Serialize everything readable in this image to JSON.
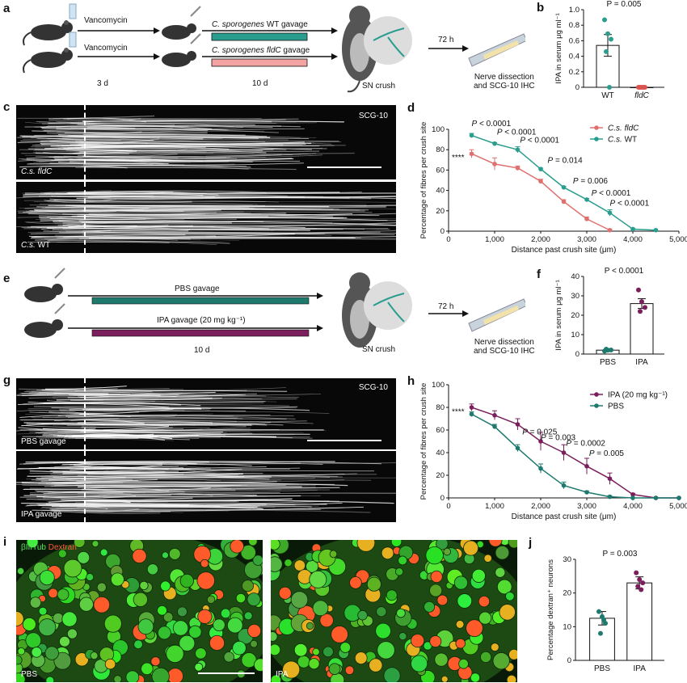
{
  "panels": {
    "a": {
      "letter": "a",
      "vanco": "Vancomycin",
      "days1": "3 d",
      "wt_gavage_species": "C. sporogenes",
      "wt_gavage_rest": "WT gavage",
      "fldc_gavage_species": "C. sporogenes",
      "fldc_gavage_gene": "fldC",
      "fldc_gavage_rest": "gavage",
      "days2": "10 d",
      "sn_crush": "SN crush",
      "hours": "72 h",
      "outcome_line1": "Nerve dissection",
      "outcome_line2": "and SCG-10 IHC",
      "bar_colors": {
        "wt": "#2a9d8f",
        "fldc": "#f4a3a3"
      }
    },
    "c": {
      "letter": "c",
      "stain": "SCG-10",
      "top_species": "C.s.",
      "top_gene": "fldC",
      "bottom_species": "C.s.",
      "bottom_gene": "WT"
    },
    "e": {
      "letter": "e",
      "pbs": "PBS gavage",
      "ipa": "IPA gavage (20 mg kg⁻¹)",
      "days": "10 d",
      "sn_crush": "SN crush",
      "hours": "72 h",
      "outcome_line1": "Nerve dissection",
      "outcome_line2": "and SCG-10 IHC",
      "bar_colors": {
        "pbs": "#1f7a6e",
        "ipa": "#7a1f5c"
      }
    },
    "g": {
      "letter": "g",
      "stain": "SCG-10",
      "top": "PBS gavage",
      "bottom": "IPA gavage"
    },
    "i": {
      "letter": "i",
      "stain1": "βIIITub",
      "stain2": "Dextran",
      "left": "PBS",
      "right": "IPA"
    }
  },
  "chart_data": [
    {
      "id": "b",
      "letter": "b",
      "type": "bar",
      "ylabel": "IPA in serum μg ml⁻¹",
      "ylim": [
        0,
        1.0
      ],
      "yticks": [
        "0",
        "0.2",
        "0.4",
        "0.6",
        "0.8",
        "1.0"
      ],
      "ytick_values": [
        0,
        0.2,
        0.4,
        0.6,
        0.8,
        1.0
      ],
      "categories": [
        "WT",
        "fldC"
      ],
      "values": [
        0.54,
        0.0
      ],
      "errors": [
        0.14,
        0.0
      ],
      "points": [
        [
          0.87,
          0.69,
          0.62,
          0.46,
          0.0
        ],
        [
          0.0,
          0.0,
          0.0,
          0.0,
          0.0
        ]
      ],
      "point_colors": [
        "#2a9d8f",
        "#d9534f"
      ],
      "pvalue": "P = 0.005"
    },
    {
      "id": "d",
      "letter": "d",
      "type": "line",
      "xlabel": "Distance past crush site (μm)",
      "ylabel": "Percentage of fibres per crush site",
      "xlim": [
        0,
        5000
      ],
      "ylim": [
        0,
        100
      ],
      "xticks": [
        "0",
        "1,000",
        "2,000",
        "3,000",
        "4,000",
        "5,000"
      ],
      "xtick_values": [
        0,
        1000,
        2000,
        3000,
        4000,
        5000
      ],
      "yticks": [
        "0",
        "20",
        "40",
        "60",
        "80",
        "100"
      ],
      "ytick_values": [
        0,
        20,
        40,
        60,
        80,
        100
      ],
      "x": [
        500,
        1000,
        1500,
        2000,
        2500,
        3000,
        3500,
        4000,
        4500
      ],
      "series": [
        {
          "name_species": "C.s.",
          "name_gene": "fldC",
          "color": "#e07070",
          "values": [
            76,
            66,
            62,
            49,
            29,
            12,
            1,
            null,
            null
          ],
          "errors": [
            4,
            6,
            2,
            2,
            2,
            2,
            1,
            null,
            null
          ]
        },
        {
          "name_species": "C.s.",
          "name_gene": "WT",
          "color": "#2a9d8f",
          "values": [
            94,
            86,
            80,
            61,
            43,
            31,
            18,
            2,
            1
          ],
          "errors": [
            2,
            1,
            3,
            1,
            1,
            1,
            3,
            1,
            0
          ]
        }
      ],
      "sig": "****",
      "annotations": [
        {
          "text": "P < 0.0001",
          "x": 500,
          "y": 103
        },
        {
          "text": "P < 0.0001",
          "x": 1050,
          "y": 95
        },
        {
          "text": "P < 0.0001",
          "x": 1550,
          "y": 87
        },
        {
          "text": "P = 0.014",
          "x": 2150,
          "y": 67
        },
        {
          "text": "P = 0.006",
          "x": 2700,
          "y": 47
        },
        {
          "text": "P < 0.0001",
          "x": 3100,
          "y": 35
        },
        {
          "text": "P < 0.0001",
          "x": 3500,
          "y": 25
        }
      ]
    },
    {
      "id": "f",
      "letter": "f",
      "type": "bar",
      "ylabel": "IPA in serum μg ml⁻¹",
      "ylim": [
        0,
        40
      ],
      "yticks": [
        "0",
        "10",
        "20",
        "30",
        "40"
      ],
      "ytick_values": [
        0,
        10,
        20,
        30,
        40
      ],
      "categories": [
        "PBS",
        "IPA"
      ],
      "values": [
        2,
        26
      ],
      "errors": [
        0.4,
        2.5
      ],
      "points": [
        [
          1.5,
          2.0,
          2.1,
          2.5
        ],
        [
          33,
          27,
          24,
          22
        ]
      ],
      "point_colors": [
        "#1f7a6e",
        "#7a1f5c"
      ],
      "pvalue": "P < 0.0001"
    },
    {
      "id": "h",
      "letter": "h",
      "type": "line",
      "xlabel": "Distance past crush site (μm)",
      "ylabel": "Percentage of fibres per crush site",
      "xlim": [
        0,
        5000
      ],
      "ylim": [
        0,
        100
      ],
      "xticks": [
        "0",
        "1,000",
        "2,000",
        "3,000",
        "4,000",
        "5,000"
      ],
      "xtick_values": [
        0,
        1000,
        2000,
        3000,
        4000,
        5000
      ],
      "yticks": [
        "0",
        "20",
        "40",
        "60",
        "80",
        "100"
      ],
      "ytick_values": [
        0,
        20,
        40,
        60,
        80,
        100
      ],
      "x": [
        500,
        1000,
        1500,
        2000,
        2500,
        3000,
        3500,
        4000,
        4500,
        5000
      ],
      "series": [
        {
          "name": "IPA (20 mg kg⁻¹)",
          "color": "#7a1f5c",
          "values": [
            80,
            73,
            65,
            50,
            40,
            28,
            17,
            3,
            0,
            0
          ],
          "errors": [
            3,
            4,
            5,
            8,
            7,
            7,
            5,
            1,
            0,
            0
          ]
        },
        {
          "name": "PBS",
          "color": "#1f7a6e",
          "values": [
            74,
            63,
            44,
            26,
            11,
            5,
            1,
            0,
            0,
            0
          ],
          "errors": [
            2,
            2,
            3,
            4,
            3,
            1,
            1,
            0,
            0,
            0
          ]
        }
      ],
      "sig": "****",
      "annotations": [
        {
          "text": "P = 0.025",
          "x": 1600,
          "y": 56
        },
        {
          "text": "P = 0.003",
          "x": 2000,
          "y": 51
        },
        {
          "text": "P = 0.0002",
          "x": 2550,
          "y": 46
        },
        {
          "text": "P = 0.005",
          "x": 3050,
          "y": 37
        }
      ]
    },
    {
      "id": "j",
      "letter": "j",
      "type": "bar",
      "ylabel": "Percentage dextran⁺ neurons",
      "ylim": [
        0,
        30
      ],
      "yticks": [
        "0",
        "10",
        "20",
        "30"
      ],
      "ytick_values": [
        0,
        10,
        20,
        30
      ],
      "categories": [
        "PBS",
        "IPA"
      ],
      "values": [
        12.5,
        23
      ],
      "errors": [
        2,
        1.8
      ],
      "points": [
        [
          14.5,
          13,
          11,
          8,
          12
        ],
        [
          26,
          24,
          23,
          22,
          21
        ]
      ],
      "point_colors": [
        "#1f7a6e",
        "#7a1f5c"
      ],
      "pvalue": "P = 0.003"
    }
  ]
}
